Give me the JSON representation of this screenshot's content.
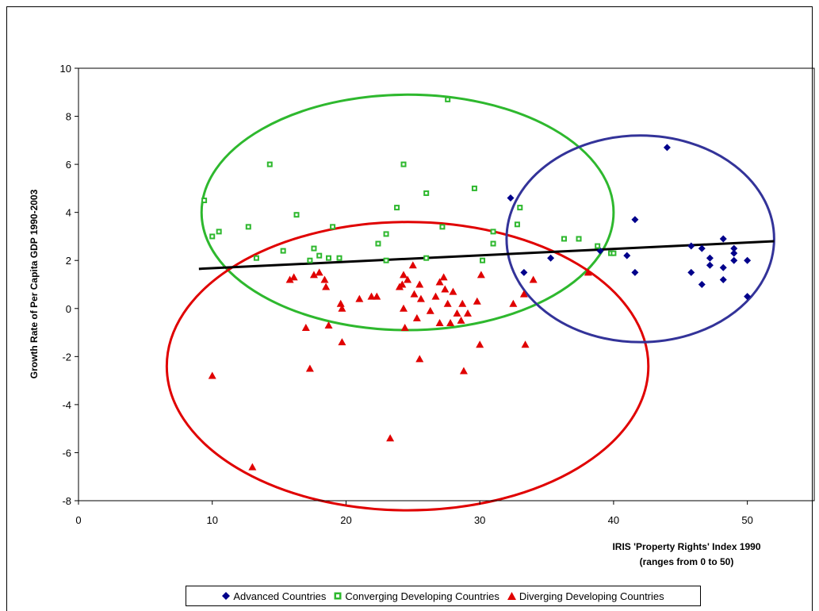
{
  "chart_data": {
    "type": "scatter",
    "title": "",
    "xlabel_line1": "IRIS 'Property Rights' Index 1990",
    "xlabel_line2": "(ranges from 0 to 50)",
    "ylabel": "Growth Rate of Per Capita GDP 1990-2003",
    "xlim": [
      0,
      55
    ],
    "ylim": [
      -8,
      10
    ],
    "x_ticks": [
      0,
      10,
      20,
      30,
      40,
      50
    ],
    "y_ticks": [
      -8,
      -6,
      -4,
      -2,
      0,
      2,
      4,
      6,
      8,
      10
    ],
    "grid": false,
    "legend_position": "bottom",
    "trend_line": {
      "x": [
        9,
        52
      ],
      "y": [
        1.65,
        2.8
      ],
      "color": "#000000"
    },
    "series": [
      {
        "name": "Advanced Countries",
        "marker": "diamond",
        "color": "#00008B",
        "points": [
          [
            32.3,
            4.6
          ],
          [
            33.3,
            1.5
          ],
          [
            35.3,
            2.1
          ],
          [
            39.0,
            2.4
          ],
          [
            41.0,
            2.2
          ],
          [
            41.6,
            3.7
          ],
          [
            41.6,
            1.5
          ],
          [
            44.0,
            6.7
          ],
          [
            45.8,
            2.6
          ],
          [
            45.8,
            1.5
          ],
          [
            46.6,
            2.5
          ],
          [
            46.6,
            1.0
          ],
          [
            47.2,
            2.1
          ],
          [
            47.2,
            1.8
          ],
          [
            48.2,
            2.9
          ],
          [
            48.2,
            1.7
          ],
          [
            48.2,
            1.2
          ],
          [
            49.0,
            2.5
          ],
          [
            49.0,
            2.3
          ],
          [
            49.0,
            2.0
          ],
          [
            50.0,
            2.0
          ],
          [
            50.0,
            0.5
          ]
        ]
      },
      {
        "name": "Converging Developing Countries",
        "marker": "square",
        "color": "#2EB82E",
        "points": [
          [
            9.4,
            4.5
          ],
          [
            10.0,
            3.0
          ],
          [
            10.5,
            3.2
          ],
          [
            12.7,
            3.4
          ],
          [
            13.3,
            2.1
          ],
          [
            14.3,
            6.0
          ],
          [
            15.3,
            2.4
          ],
          [
            16.3,
            3.9
          ],
          [
            17.3,
            2.0
          ],
          [
            17.6,
            2.5
          ],
          [
            18.0,
            2.2
          ],
          [
            18.7,
            2.1
          ],
          [
            19.0,
            3.4
          ],
          [
            19.5,
            2.1
          ],
          [
            22.4,
            2.7
          ],
          [
            23.0,
            3.1
          ],
          [
            23.0,
            2.0
          ],
          [
            23.8,
            4.2
          ],
          [
            24.3,
            6.0
          ],
          [
            26.0,
            4.8
          ],
          [
            26.0,
            2.1
          ],
          [
            27.2,
            3.4
          ],
          [
            27.6,
            8.7
          ],
          [
            29.6,
            5.0
          ],
          [
            30.2,
            2.0
          ],
          [
            31.0,
            2.7
          ],
          [
            31.0,
            3.2
          ],
          [
            32.8,
            3.5
          ],
          [
            33.0,
            4.2
          ],
          [
            36.3,
            2.9
          ],
          [
            37.4,
            2.9
          ],
          [
            38.8,
            2.6
          ],
          [
            39.8,
            2.3
          ],
          [
            40.0,
            2.3
          ]
        ]
      },
      {
        "name": "Diverging Developing Countries",
        "marker": "triangle",
        "color": "#E00000",
        "points": [
          [
            10.0,
            -2.8
          ],
          [
            13.0,
            -6.6
          ],
          [
            15.8,
            1.2
          ],
          [
            16.1,
            1.3
          ],
          [
            17.0,
            -0.8
          ],
          [
            17.3,
            -2.5
          ],
          [
            17.6,
            1.4
          ],
          [
            18.0,
            1.5
          ],
          [
            18.4,
            1.2
          ],
          [
            18.5,
            0.9
          ],
          [
            18.7,
            -0.7
          ],
          [
            19.6,
            0.2
          ],
          [
            19.7,
            0.0
          ],
          [
            19.7,
            -1.4
          ],
          [
            21.0,
            0.4
          ],
          [
            21.9,
            0.5
          ],
          [
            22.3,
            0.5
          ],
          [
            23.3,
            -5.4
          ],
          [
            24.0,
            0.9
          ],
          [
            24.2,
            1.0
          ],
          [
            24.3,
            1.4
          ],
          [
            24.3,
            0.0
          ],
          [
            24.4,
            -0.8
          ],
          [
            24.6,
            1.2
          ],
          [
            25.0,
            1.8
          ],
          [
            25.1,
            0.6
          ],
          [
            25.3,
            -0.4
          ],
          [
            25.5,
            1.0
          ],
          [
            25.5,
            -2.1
          ],
          [
            25.6,
            0.4
          ],
          [
            26.3,
            -0.1
          ],
          [
            26.7,
            0.5
          ],
          [
            27.0,
            1.1
          ],
          [
            27.0,
            -0.6
          ],
          [
            27.3,
            1.3
          ],
          [
            27.4,
            0.8
          ],
          [
            27.6,
            0.2
          ],
          [
            27.8,
            -0.6
          ],
          [
            28.0,
            0.7
          ],
          [
            28.3,
            -0.2
          ],
          [
            28.6,
            -0.5
          ],
          [
            28.7,
            0.2
          ],
          [
            28.8,
            -2.6
          ],
          [
            29.1,
            -0.2
          ],
          [
            29.8,
            0.3
          ],
          [
            30.0,
            -1.5
          ],
          [
            30.1,
            1.4
          ],
          [
            32.5,
            0.2
          ],
          [
            33.3,
            0.6
          ],
          [
            33.4,
            -1.5
          ],
          [
            34.0,
            1.2
          ],
          [
            38.1,
            1.5
          ]
        ]
      }
    ],
    "ellipses": [
      {
        "label": "converging",
        "color": "#2EB82E",
        "cx": 24.6,
        "cy": 4.0,
        "rx": 15.4,
        "ry": 4.9
      },
      {
        "label": "diverging",
        "color": "#E00000",
        "cx": 24.6,
        "cy": -2.4,
        "rx": 18.0,
        "ry": 6.0
      },
      {
        "label": "advanced",
        "color": "#333399",
        "cx": 42.0,
        "cy": 2.9,
        "rx": 10.0,
        "ry": 4.3
      }
    ]
  }
}
